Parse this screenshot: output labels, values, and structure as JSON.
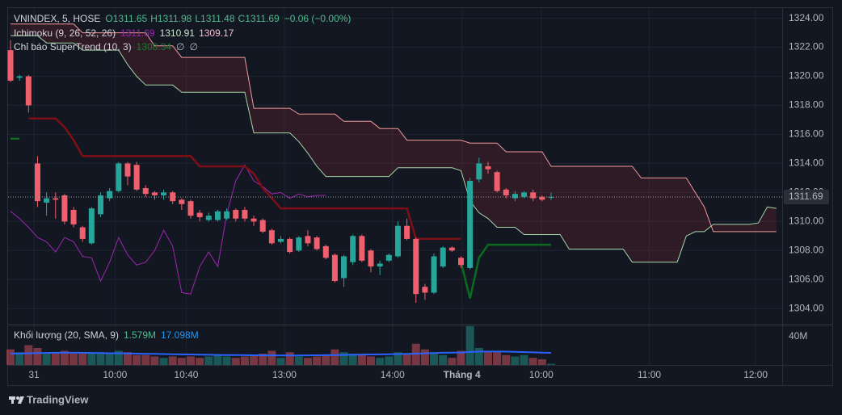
{
  "header": {
    "symbol": "VNINDEX, 5, HOSE",
    "open": "O1311.65",
    "high": "H1311.98",
    "low": "L1311.48",
    "close": "C1311.69",
    "change": "−0.06 (−0.00%)",
    "indicators": [
      {
        "name": "Ichimoku (9, 26, 52, 26)",
        "values": [
          "1311.69",
          "1310.91",
          "1309.17"
        ]
      },
      {
        "name": "Chỉ báo SuperTrend (10, 3)",
        "values": [
          "1308.34",
          "∅",
          "∅"
        ]
      }
    ],
    "volume": {
      "name": "Khối lượng (20, SMA, 9)",
      "values": [
        "1.579M",
        "17.098M"
      ]
    }
  },
  "footer": {
    "brand": "TradingView"
  },
  "chart_data": [
    {
      "type": "candlestick",
      "up_color": "#26a69a",
      "down_color": "#f05f6d",
      "open": [
        1321.8,
        1319.9,
        1320.0,
        1314.0,
        1311.3,
        1311.6,
        1311.8,
        1310.8,
        1309.6,
        1308.5,
        1310.5,
        1311.6,
        1312.1,
        1314.0,
        1313.9,
        1312.3,
        1312.0,
        1311.8,
        1312.0,
        1311.5,
        1311.4,
        1310.6,
        1310.1,
        1310.1,
        1310.2,
        1310.8,
        1310.8,
        1310.2,
        1310.1,
        1309.4,
        1308.6,
        1308.8,
        1308.0,
        1309.0,
        1308.9,
        1308.3,
        1307.7,
        1306.1,
        1307.2,
        1309.0,
        1308.0,
        1306.9,
        1307.3,
        1307.6,
        1309.7,
        1308.8,
        1305.5,
        1305.1,
        1306.9,
        1308.2,
        1307.5,
        1306.8,
        1312.9,
        1313.8,
        1313.4,
        1312.2,
        1311.6,
        1311.7,
        1312.0,
        1311.7,
        1311.65
      ],
      "high": [
        1322.5,
        1320.1,
        1320.1,
        1314.5,
        1312.0,
        1312.0,
        1311.9,
        1311.0,
        1309.7,
        1311.0,
        1312.0,
        1312.3,
        1314.1,
        1314.1,
        1314.1,
        1312.5,
        1312.1,
        1312.2,
        1312.1,
        1311.6,
        1311.5,
        1310.8,
        1310.6,
        1310.8,
        1310.9,
        1310.9,
        1311.0,
        1310.4,
        1310.2,
        1309.5,
        1309.0,
        1308.9,
        1309.0,
        1309.4,
        1309.0,
        1308.4,
        1307.8,
        1307.7,
        1309.1,
        1309.1,
        1308.1,
        1307.3,
        1307.8,
        1310.0,
        1310.2,
        1308.9,
        1305.7,
        1307.8,
        1308.3,
        1308.3,
        1307.6,
        1313.0,
        1314.4,
        1314.1,
        1313.5,
        1312.3,
        1312.1,
        1312.1,
        1312.2,
        1311.8,
        1311.98
      ],
      "low": [
        1319.6,
        1319.7,
        1317.5,
        1311.0,
        1310.4,
        1310.2,
        1309.8,
        1309.6,
        1308.6,
        1308.4,
        1310.3,
        1311.4,
        1312.0,
        1312.5,
        1312.1,
        1311.7,
        1311.5,
        1311.5,
        1311.2,
        1310.8,
        1310.2,
        1310.0,
        1310.0,
        1310.0,
        1310.1,
        1310.0,
        1310.0,
        1309.7,
        1309.2,
        1308.4,
        1308.5,
        1307.8,
        1307.9,
        1308.3,
        1308.0,
        1307.4,
        1305.8,
        1305.5,
        1307.0,
        1307.2,
        1306.5,
        1306.3,
        1307.2,
        1307.5,
        1308.7,
        1304.4,
        1304.6,
        1305.0,
        1306.8,
        1307.9,
        1306.8,
        1306.7,
        1312.7,
        1313.3,
        1312.0,
        1311.6,
        1311.4,
        1311.6,
        1311.4,
        1311.4,
        1311.48
      ],
      "close": [
        1319.7,
        1320.0,
        1318.0,
        1311.4,
        1311.6,
        1311.5,
        1310.0,
        1309.8,
        1308.8,
        1310.9,
        1311.8,
        1312.1,
        1314.0,
        1313.1,
        1312.2,
        1311.9,
        1311.8,
        1312.0,
        1311.4,
        1311.2,
        1310.4,
        1310.3,
        1310.4,
        1310.7,
        1310.7,
        1310.2,
        1310.2,
        1310.0,
        1309.3,
        1308.5,
        1308.8,
        1307.9,
        1308.9,
        1308.5,
        1308.1,
        1307.5,
        1305.9,
        1307.6,
        1309.0,
        1307.3,
        1306.9,
        1307.1,
        1307.7,
        1309.7,
        1308.8,
        1305.0,
        1305.1,
        1307.6,
        1308.2,
        1308.0,
        1307.0,
        1312.8,
        1314.0,
        1313.6,
        1312.1,
        1311.8,
        1311.9,
        1312.0,
        1311.6,
        1311.5,
        1311.69
      ],
      "cloud": {
        "color": "rgba(242,54,69,0.13)",
        "span_a": {
          "color": "#a5d6a7",
          "values": [
            1322.8,
            1322.8,
            1322.8,
            1322.8,
            1322.3,
            1322.3,
            1322.3,
            1322.3,
            1321.8,
            1321.8,
            1321.8,
            1321.8,
            1321.8,
            1320.8,
            1320.0,
            1319.4,
            1319.4,
            1319.4,
            1319.4,
            1318.9,
            1318.9,
            1318.9,
            1318.9,
            1318.9,
            1318.9,
            1318.9,
            1318.9,
            1316.1,
            1316.1,
            1316.1,
            1316.1,
            1316.1,
            1315.5,
            1314.7,
            1313.8,
            1313.1,
            1313.1,
            1313.1,
            1313.1,
            1313.1,
            1313.1,
            1313.1,
            1313.1,
            1313.7,
            1313.7,
            1313.7,
            1313.7,
            1313.7,
            1313.7,
            1313.7,
            1313.5,
            1311.4,
            1310.6,
            1310.2,
            1309.6,
            1309.6,
            1309.6,
            1309.1,
            1309.1,
            1309.1,
            1309.1,
            1309.1,
            1308.1,
            1308.1,
            1308.1,
            1308.1,
            1308.1,
            1308.1,
            1308.1,
            1307.2,
            1307.2,
            1307.2,
            1307.2,
            1307.2,
            1307.2,
            1309.0,
            1309.3,
            1309.3,
            1309.8,
            1309.8,
            1309.8,
            1309.8,
            1309.8,
            1309.9,
            1311.0,
            1310.9
          ]
        },
        "span_b": {
          "color": "#ef9a9a",
          "values": [
            1323.6,
            1323.6,
            1323.6,
            1323.6,
            1323.6,
            1323.6,
            1323.6,
            1323.6,
            1323.0,
            1323.0,
            1323.0,
            1323.0,
            1323.0,
            1323.0,
            1323.0,
            1323.0,
            1322.1,
            1322.1,
            1322.1,
            1321.3,
            1321.3,
            1321.3,
            1321.3,
            1321.3,
            1321.3,
            1321.3,
            1321.3,
            1317.8,
            1317.8,
            1317.8,
            1317.8,
            1317.8,
            1317.4,
            1317.4,
            1317.4,
            1317.4,
            1317.4,
            1316.9,
            1316.9,
            1316.9,
            1316.9,
            1316.4,
            1316.4,
            1316.4,
            1315.6,
            1315.6,
            1315.6,
            1315.6,
            1315.6,
            1315.6,
            1315.6,
            1315.4,
            1315.4,
            1315.4,
            1315.4,
            1314.8,
            1314.8,
            1314.8,
            1314.8,
            1314.8,
            1313.8,
            1313.8,
            1313.8,
            1313.8,
            1313.8,
            1313.8,
            1313.8,
            1313.8,
            1313.8,
            1313.8,
            1313.0,
            1313.0,
            1313.0,
            1313.0,
            1313.0,
            1313.0,
            1312.0,
            1311.0,
            1309.3,
            1309.3,
            1309.3,
            1309.3,
            1309.3,
            1309.3,
            1309.3,
            1309.3
          ]
        }
      },
      "series": [
        {
          "color": "#9c27b0",
          "values": [
            1310.7,
            1310.2,
            1309.6,
            1308.9,
            1308.6,
            1307.9,
            1308.9,
            1308.6,
            1307.6,
            1307.5,
            1305.9,
            1307.2,
            1308.9,
            1307.7,
            1307.0,
            1307.2,
            1308.0,
            1309.4,
            1308.3,
            1305.1,
            1305.0,
            1306.9,
            1307.9,
            1306.9,
            1310.5,
            1312.8,
            1313.9,
            1312.8,
            1312.4,
            1311.9,
            1312.0,
            1311.6,
            1311.9,
            1311.7,
            1311.8,
            1311.8
          ]
        },
        {
          "color": "#7f0f17",
          "values": [
            null,
            null,
            1317.1,
            1317.1,
            1317.1,
            1317.1,
            1316.5,
            1315.6,
            1314.5,
            1314.5,
            1314.5,
            1314.5,
            1314.5,
            1314.5,
            1314.5,
            1314.5,
            1314.5,
            1314.5,
            1314.5,
            1314.5,
            1314.5,
            1313.8,
            1313.8,
            1313.8,
            1313.8,
            1313.8,
            1313.8,
            1313.3,
            1312.3,
            1311.6,
            1310.9,
            1310.9,
            1310.9,
            1310.9,
            1310.9,
            1310.9,
            1310.9,
            1310.9,
            1310.9,
            1310.9,
            1310.9,
            1310.9,
            1310.9,
            1310.9,
            1310.9,
            1308.8,
            1308.8,
            1308.8,
            1308.8,
            1308.8,
            1308.8,
            null,
            null,
            null,
            null,
            null,
            null,
            null,
            null,
            null,
            null
          ]
        },
        {
          "color": "#0b6b1f",
          "values": [
            1315.7,
            1315.7,
            null,
            null,
            null,
            null,
            null,
            null,
            null,
            null,
            null,
            null,
            null,
            null,
            null,
            null,
            null,
            null,
            null,
            null,
            null,
            null,
            null,
            null,
            null,
            null,
            null,
            null,
            null,
            null,
            null,
            null,
            null,
            null,
            null,
            null,
            null,
            null,
            null,
            null,
            null,
            null,
            null,
            null,
            null,
            null,
            null,
            null,
            null,
            null,
            1307.2,
            1304.7,
            1307.5,
            1308.4,
            1308.4,
            1308.4,
            1308.4,
            1308.4,
            1308.4,
            1308.4,
            1308.4
          ]
        }
      ],
      "last_price": {
        "value": 1311.69,
        "label": "1311.69"
      },
      "xlim": [
        -0.27,
        85.65
      ],
      "xticks": [
        {
          "value": 2.6,
          "label": "31"
        },
        {
          "value": 11.6,
          "label": "10:00"
        },
        {
          "value": 19.5,
          "label": "10:40"
        },
        {
          "value": 30.4,
          "label": "13:00"
        },
        {
          "value": 42.4,
          "label": "14:00"
        },
        {
          "value": 50.1,
          "label": "Tháng 4"
        },
        {
          "value": 58.9,
          "label": "10:00"
        },
        {
          "value": 70.9,
          "label": "11:00"
        },
        {
          "value": 82.7,
          "label": "12:00"
        }
      ],
      "ylim": [
        1302.9,
        1324.7
      ],
      "yticks": [
        {
          "value": 1304,
          "label": "1304.00"
        },
        {
          "value": 1306,
          "label": "1306.00"
        },
        {
          "value": 1308,
          "label": "1308.00"
        },
        {
          "value": 1310,
          "label": "1310.00"
        },
        {
          "value": 1312,
          "label": "1312.00"
        },
        {
          "value": 1314,
          "label": "1314.00"
        },
        {
          "value": 1316,
          "label": "1316.00"
        },
        {
          "value": 1318,
          "label": "1318.00"
        },
        {
          "value": 1320,
          "label": "1320.00"
        },
        {
          "value": 1322,
          "label": "1322.00"
        },
        {
          "value": 1324,
          "label": "1324.00"
        }
      ],
      "grid": true
    },
    {
      "type": "bar",
      "values": [
        22,
        18,
        28,
        24,
        18,
        18,
        20,
        16,
        18,
        18,
        18,
        16,
        20,
        18,
        14,
        14,
        12,
        10,
        12,
        10,
        12,
        10,
        12,
        14,
        12,
        10,
        12,
        14,
        16,
        20,
        10,
        18,
        12,
        10,
        12,
        14,
        22,
        18,
        16,
        16,
        12,
        10,
        12,
        18,
        16,
        30,
        22,
        18,
        14,
        10,
        20,
        55,
        24,
        20,
        18,
        14,
        12,
        14,
        10,
        8,
        1.579
      ],
      "up_color": "rgba(38,166,154,0.45)",
      "down_color": "rgba(240,95,109,0.45)",
      "series": [
        {
          "color": "#2962ff",
          "values": [
            16,
            16.2,
            16.5,
            16.8,
            17,
            17.2,
            17.3,
            17.3,
            17.2,
            17,
            16.8,
            16.6,
            16.4,
            16.2,
            16,
            15.8,
            15.6,
            15.4,
            15.2,
            15,
            14.8,
            14.6,
            14.4,
            14.2,
            14,
            13.9,
            13.8,
            13.7,
            13.6,
            13.6,
            13.5,
            13.5,
            13.5,
            13.6,
            13.7,
            13.8,
            14,
            14.2,
            14.4,
            14.6,
            14.8,
            15,
            15.2,
            15.4,
            15.6,
            16,
            16.4,
            16.8,
            17.2,
            17.4,
            17.6,
            18.4,
            18.8,
            19,
            19,
            18.8,
            18.5,
            18.2,
            17.8,
            17.4,
            17.098
          ]
        }
      ],
      "ylim": [
        0,
        57.1
      ],
      "yticks": [
        {
          "value": 40,
          "label": "40M"
        }
      ]
    }
  ]
}
